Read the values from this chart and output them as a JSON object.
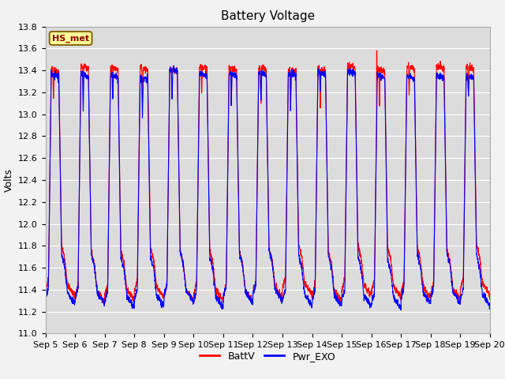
{
  "title": "Battery Voltage",
  "ylabel": "Volts",
  "ylim": [
    11.0,
    13.8
  ],
  "yticks": [
    11.0,
    11.2,
    11.4,
    11.6,
    11.8,
    12.0,
    12.2,
    12.4,
    12.6,
    12.8,
    13.0,
    13.2,
    13.4,
    13.6,
    13.8
  ],
  "x_tick_labels": [
    "Sep 5",
    "Sep 6",
    "Sep 7",
    "Sep 8",
    "Sep 9",
    "Sep 10",
    "Sep 11",
    "Sep 12",
    "Sep 13",
    "Sep 14",
    "Sep 15",
    "Sep 16",
    "Sep 17",
    "Sep 18",
    "Sep 19",
    "Sep 20"
  ],
  "station_label": "HS_met",
  "legend_labels": [
    "BattV",
    "Pwr_EXO"
  ],
  "line_colors": [
    "red",
    "blue"
  ],
  "plot_bg_color": "#dcdcdc",
  "fig_bg_color": "#f2f2f2",
  "title_fontsize": 11,
  "axis_label_fontsize": 9,
  "tick_fontsize": 8
}
